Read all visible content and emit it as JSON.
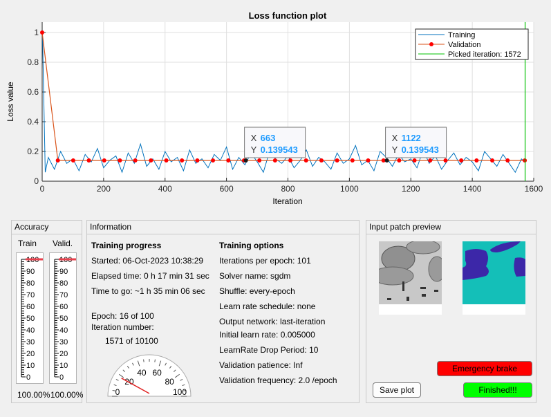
{
  "chart_data": {
    "type": "line",
    "title": "Loss function plot",
    "xlabel": "Iteration",
    "ylabel": "Loss value",
    "xlim": [
      0,
      1600
    ],
    "ylim": [
      0,
      1.07
    ],
    "xticks": [
      "0",
      "200",
      "400",
      "600",
      "800",
      "1000",
      "1200",
      "1400",
      "1600"
    ],
    "yticks": [
      "0",
      "0.2",
      "0.4",
      "0.6",
      "0.8",
      "1"
    ],
    "grid": true,
    "legend_placement": "top-right",
    "series": [
      {
        "name": "Training",
        "color": "#0072bd",
        "x": [
          1,
          10,
          20,
          40,
          60,
          80,
          100,
          120,
          140,
          160,
          180,
          200,
          220,
          240,
          260,
          280,
          300,
          320,
          340,
          360,
          380,
          400,
          420,
          440,
          460,
          480,
          500,
          520,
          540,
          560,
          580,
          600,
          620,
          640,
          660,
          680,
          700,
          720,
          740,
          760,
          780,
          800,
          820,
          840,
          860,
          880,
          900,
          920,
          940,
          960,
          980,
          1000,
          1020,
          1040,
          1060,
          1080,
          1100,
          1120,
          1140,
          1160,
          1180,
          1200,
          1220,
          1240,
          1260,
          1280,
          1300,
          1320,
          1340,
          1360,
          1380,
          1400,
          1420,
          1440,
          1460,
          1480,
          1500,
          1520,
          1540,
          1560,
          1571
        ],
        "y": [
          1.0,
          0.06,
          0.16,
          0.08,
          0.2,
          0.12,
          0.15,
          0.07,
          0.18,
          0.13,
          0.22,
          0.09,
          0.14,
          0.17,
          0.06,
          0.19,
          0.12,
          0.25,
          0.1,
          0.15,
          0.08,
          0.2,
          0.13,
          0.16,
          0.07,
          0.21,
          0.12,
          0.15,
          0.09,
          0.18,
          0.14,
          0.23,
          0.08,
          0.16,
          0.11,
          0.19,
          0.13,
          0.06,
          0.2,
          0.15,
          0.12,
          0.17,
          0.09,
          0.14,
          0.21,
          0.1,
          0.16,
          0.13,
          0.08,
          0.19,
          0.12,
          0.15,
          0.24,
          0.11,
          0.14,
          0.07,
          0.2,
          0.16,
          0.1,
          0.18,
          0.13,
          0.15,
          0.09,
          0.21,
          0.12,
          0.17,
          0.08,
          0.14,
          0.19,
          0.11,
          0.16,
          0.13,
          0.07,
          0.2,
          0.15,
          0.1,
          0.18,
          0.12,
          0.06,
          0.15,
          0.13
        ]
      },
      {
        "name": "Validation",
        "color": "#d95319",
        "marker_color": "#ff0000",
        "x": [
          0,
          51,
          101,
          152,
          202,
          253,
          303,
          354,
          404,
          455,
          505,
          556,
          606,
          657,
          707,
          758,
          808,
          859,
          909,
          960,
          1010,
          1061,
          1111,
          1162,
          1212,
          1263,
          1313,
          1364,
          1414,
          1465,
          1515,
          1571
        ],
        "y": [
          1.0,
          0.139543,
          0.139543,
          0.139543,
          0.139543,
          0.139543,
          0.139543,
          0.139543,
          0.139543,
          0.139543,
          0.139543,
          0.139543,
          0.139543,
          0.139543,
          0.139543,
          0.139543,
          0.139543,
          0.139543,
          0.139543,
          0.139543,
          0.139543,
          0.139543,
          0.139543,
          0.139543,
          0.139543,
          0.139543,
          0.139543,
          0.139543,
          0.139543,
          0.139543,
          0.139543,
          0.139543
        ]
      },
      {
        "name": "Picked iteration: 1572",
        "color": "#00c000",
        "x": [
          1572,
          1572
        ],
        "y": [
          0,
          1.07
        ]
      }
    ],
    "datatips": [
      {
        "x": 663,
        "y": 0.139543,
        "xlabel": "X",
        "ylabel": "Y",
        "xval": "663",
        "yval": "0.139543"
      },
      {
        "x": 1122,
        "y": 0.139543,
        "xlabel": "X",
        "ylabel": "Y",
        "xval": "1122",
        "yval": "0.139543"
      }
    ]
  },
  "accuracy": {
    "title": "Accuracy",
    "train_label": "Train",
    "valid_label": "Valid.",
    "train_value": 100,
    "valid_value": 100,
    "train_text": "100.00%",
    "valid_text": "100.00%",
    "scale": [
      "0",
      "10",
      "20",
      "30",
      "40",
      "50",
      "60",
      "70",
      "80",
      "90",
      "100"
    ],
    "marker_color": "#e8404c"
  },
  "information": {
    "title": "Information",
    "progress_heading": "Training progress",
    "started": "Started: 06-Oct-2023 10:38:29",
    "elapsed": "Elapsed time: 0 h 17 min 31 sec",
    "to_go": "Time to go: ~1 h 35 min 06 sec",
    "epoch": "Epoch: 16 of 100",
    "iteration_label": "Iteration number:",
    "iteration_value": "1571 of 10100",
    "gauge": {
      "value": 16,
      "min": 0,
      "max": 100,
      "labels": [
        "0",
        "20",
        "40",
        "60",
        "80",
        "100"
      ]
    },
    "options_heading": "Training options",
    "options": [
      "Iterations per epoch: 101",
      "Solver name: sgdm",
      "Shuffle: every-epoch",
      "Learn rate schedule: none",
      "Output network: last-iteration"
    ],
    "options2": [
      "Initial learn rate: 0.005000",
      "LearnRate Drop Period: 10",
      "Validation patience: Inf",
      "Validation frequency: 2.0 /epoch"
    ]
  },
  "preview": {
    "title": "Input patch preview",
    "label_colors": {
      "background": "#14bfb8",
      "object": "#3c27a8"
    }
  },
  "buttons": {
    "save": "Save plot",
    "emergency": "Emergency brake",
    "finished": "Finished!!!",
    "emergency_color": "#ff0000",
    "finished_color": "#00ff00"
  }
}
